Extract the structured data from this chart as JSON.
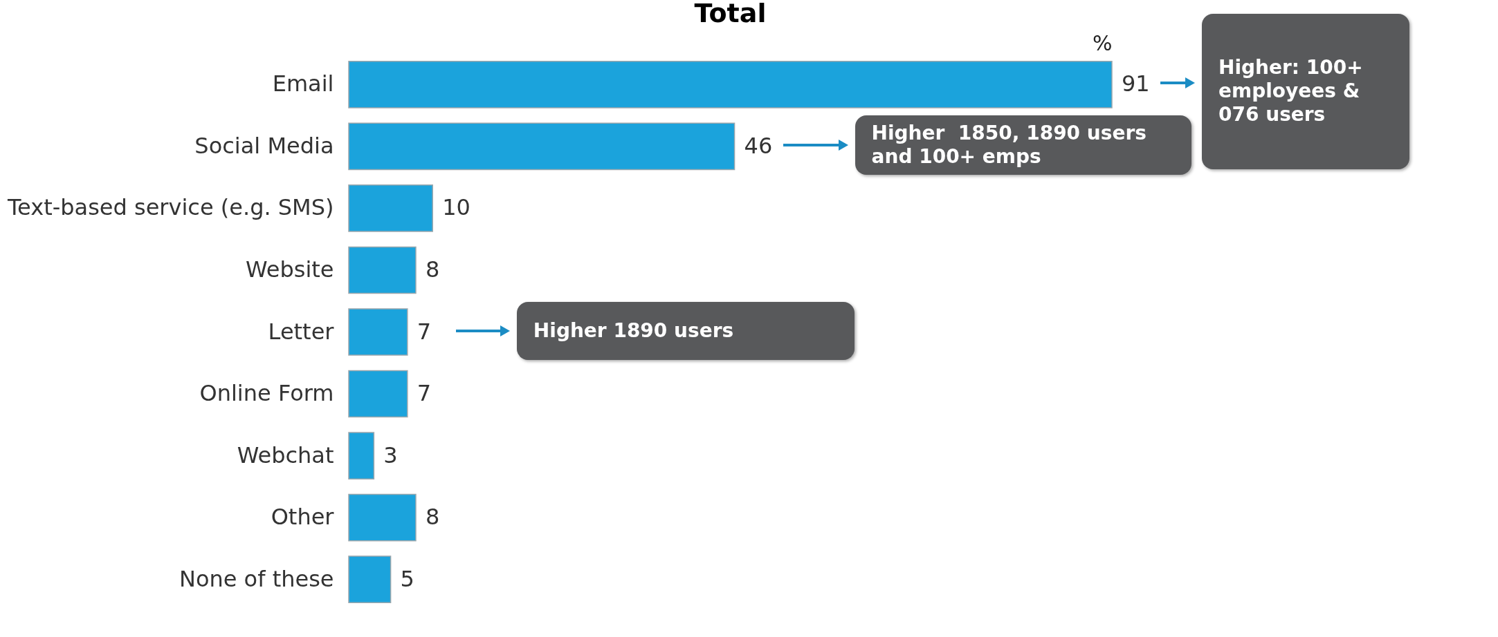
{
  "chart_data": {
    "type": "bar",
    "orientation": "horizontal",
    "title": "Total",
    "xlabel": "%",
    "categories": [
      "Email",
      "Social Media",
      "Text-based service (e.g. SMS)",
      "Website",
      "Letter",
      "Online Form",
      "Webchat",
      "Other",
      "None of these"
    ],
    "values": [
      91,
      46,
      10,
      8,
      7,
      7,
      3,
      8,
      5
    ],
    "color": "#1ba3dc",
    "data_labels": true,
    "annotations": [
      "Higher: 100+ employees & 076 users",
      "Higher  1850, 1890 users and 100+ emps",
      "Higher 1890 users"
    ]
  }
}
